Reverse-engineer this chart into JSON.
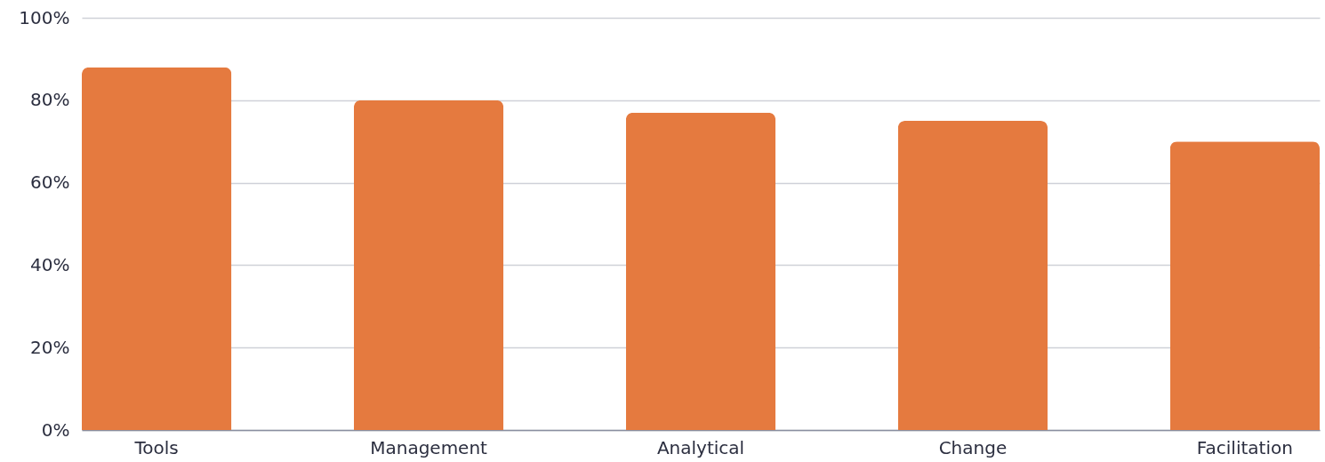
{
  "chart_data": {
    "type": "bar",
    "categories": [
      "Tools",
      "Management",
      "Analytical",
      "Change",
      "Facilitation"
    ],
    "values": [
      88,
      80,
      77,
      75,
      70
    ],
    "color": "#e57a3f",
    "ylim": [
      0,
      100
    ],
    "yticks": [
      {
        "value": 0,
        "label": "0%"
      },
      {
        "value": 20,
        "label": "20%"
      },
      {
        "value": 40,
        "label": "40%"
      },
      {
        "value": 60,
        "label": "60%"
      },
      {
        "value": 80,
        "label": "80%"
      },
      {
        "value": 100,
        "label": "100%"
      }
    ],
    "grid": "y"
  }
}
